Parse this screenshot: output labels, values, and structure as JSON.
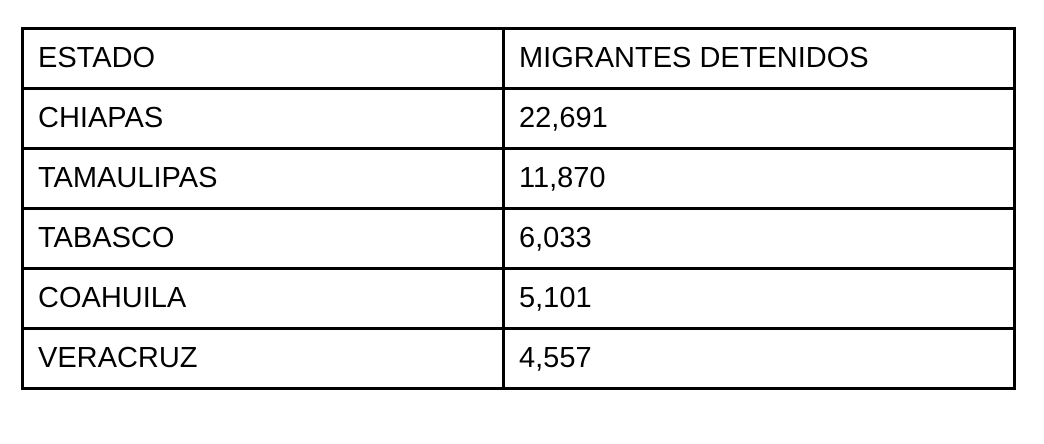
{
  "table": {
    "headers": [
      "ESTADO",
      "MIGRANTES DETENIDOS"
    ],
    "rows": [
      {
        "estado": "CHIAPAS",
        "migrantes": "22,691"
      },
      {
        "estado": "TAMAULIPAS",
        "migrantes": "11,870"
      },
      {
        "estado": "TABASCO",
        "migrantes": "6,033"
      },
      {
        "estado": "COAHUILA",
        "migrantes": "5,101"
      },
      {
        "estado": "VERACRUZ",
        "migrantes": "4,557"
      }
    ]
  },
  "chart_data": {
    "type": "table",
    "columns": [
      "ESTADO",
      "MIGRANTES DETENIDOS"
    ],
    "rows": [
      [
        "CHIAPAS",
        22691
      ],
      [
        "TAMAULIPAS",
        11870
      ],
      [
        "TABASCO",
        6033
      ],
      [
        "COAHUILA",
        5101
      ],
      [
        "VERACRUZ",
        4557
      ]
    ]
  }
}
